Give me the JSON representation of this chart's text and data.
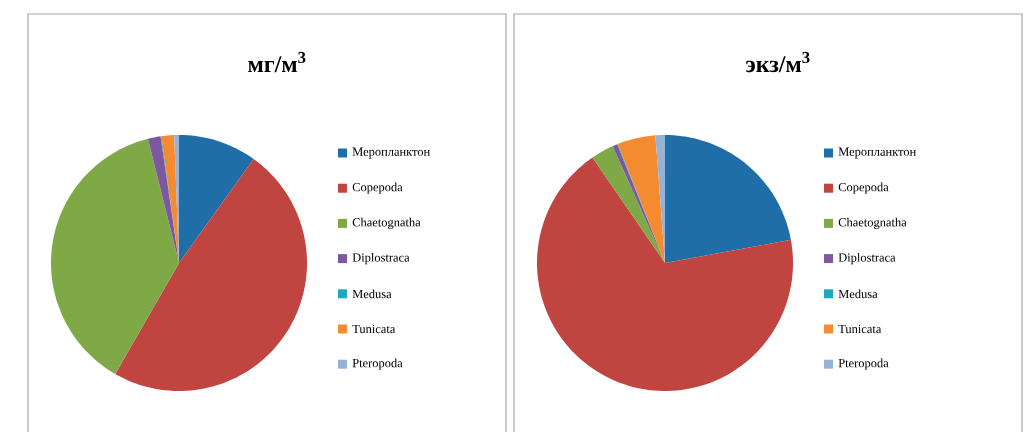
{
  "chart_data": [
    {
      "type": "pie",
      "title": "мг/м$^{3}$",
      "legend": "right",
      "categories": [
        "Меропланктон",
        "Copepoda",
        "Chaetognatha",
        "Diplostraca",
        "Medusa",
        "Tunicata",
        "Pteropoda"
      ],
      "values": [
        9.9,
        48.4,
        37.8,
        1.6,
        0.1,
        1.6,
        0.6
      ],
      "colors": [
        "#1f6ea8",
        "#c0443f",
        "#7fa947",
        "#7d58a0",
        "#1fa8c0",
        "#f58b31",
        "#95b3d7"
      ]
    },
    {
      "type": "pie",
      "title": "экз/м$^{3}$",
      "legend": "right",
      "categories": [
        "Меропланктон",
        "Copepoda",
        "Chaetognatha",
        "Diplostraca",
        "Medusa",
        "Tunicata",
        "Pteropoda"
      ],
      "values": [
        22.1,
        68.3,
        2.9,
        0.6,
        0.1,
        4.8,
        1.2
      ],
      "colors": [
        "#1f6ea8",
        "#c0443f",
        "#7fa947",
        "#7d58a0",
        "#1fa8c0",
        "#f58b31",
        "#95b3d7"
      ]
    }
  ]
}
